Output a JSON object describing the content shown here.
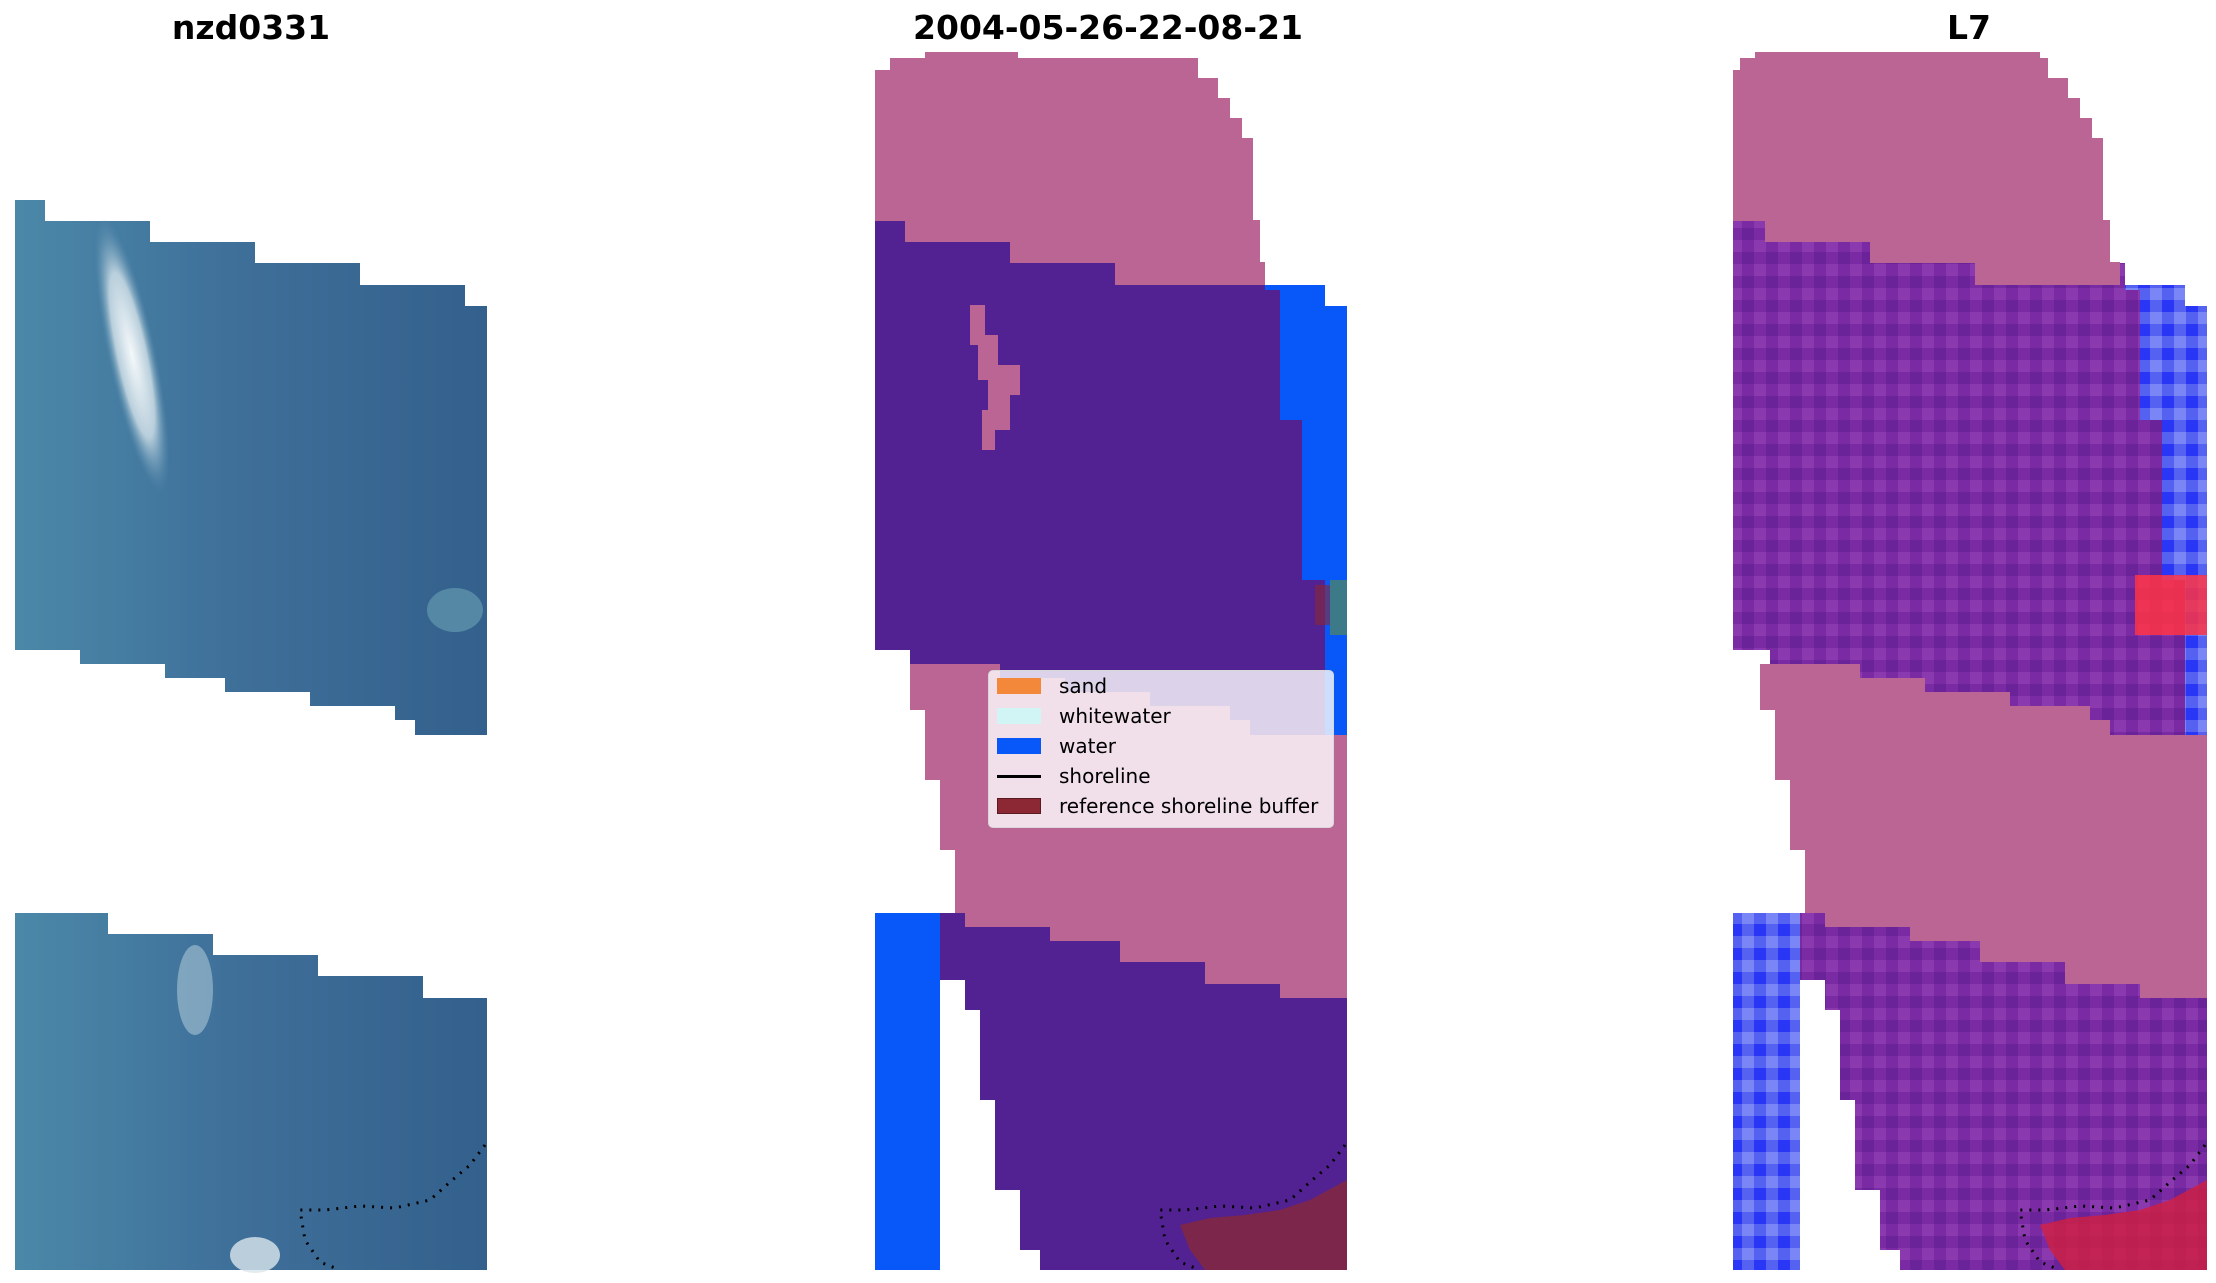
{
  "panels": {
    "left": {
      "title": "nzd0331"
    },
    "middle": {
      "title": "2004-05-26-22-08-21"
    },
    "right": {
      "title": "L7"
    }
  },
  "legend": {
    "items": [
      {
        "label": "sand",
        "color": "#f4883a",
        "type": "patch"
      },
      {
        "label": "whitewater",
        "color": "#d1f5f5",
        "type": "patch"
      },
      {
        "label": "water",
        "color": "#0857f8",
        "type": "patch"
      },
      {
        "label": "shoreline",
        "color": "#000000",
        "type": "line"
      },
      {
        "label": "reference shoreline buffer",
        "color": "#8b2834",
        "type": "patch"
      }
    ]
  },
  "colors": {
    "background": "#ffffff",
    "rgb_water": "#3f6f98",
    "rgb_surf": "#e6eef2",
    "class_sand_overlay": "#bb6594",
    "class_water_dark": "#522192",
    "class_water_bright": "#0857f8",
    "reference_buffer": "#8b2834",
    "index_positive": "#7a2ba3",
    "index_negative": "#5561f0",
    "index_high": "#ff3344"
  }
}
